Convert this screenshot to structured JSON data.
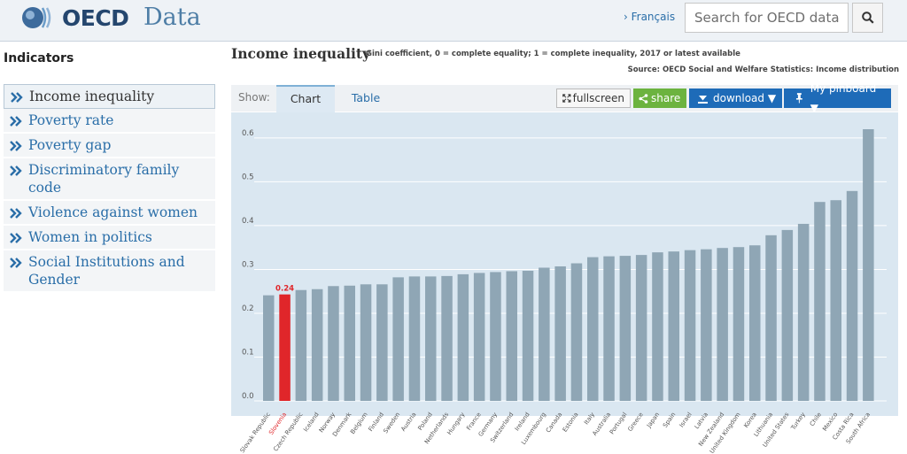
{
  "header": {
    "brand": "OECD",
    "section": "Data",
    "language_link": "› Français",
    "search_placeholder": "Search for OECD data"
  },
  "sidebar": {
    "title": "Indicators",
    "items": [
      {
        "label": "Income inequality",
        "active": true
      },
      {
        "label": "Poverty rate",
        "active": false
      },
      {
        "label": "Poverty gap",
        "active": false
      },
      {
        "label": "Discriminatory family code",
        "active": false
      },
      {
        "label": "Violence against women",
        "active": false
      },
      {
        "label": "Women in politics",
        "active": false
      },
      {
        "label": "Social Institutions and Gender",
        "active": false
      }
    ]
  },
  "main": {
    "title": "Income inequality",
    "subtitle": "Gini coefficient, 0 = complete equality; 1 = complete inequality, 2017 or latest available",
    "source": "Source: OECD Social and Welfare Statistics: Income distribution",
    "show_label": "Show:",
    "tabs": [
      {
        "label": "Chart",
        "active": true
      },
      {
        "label": "Table",
        "active": false
      }
    ],
    "buttons": {
      "fullscreen": "fullscreen",
      "share": "share",
      "download": "download ▼",
      "pinboard": "My pinboard ▼"
    }
  },
  "colors": {
    "bar": "#8fa6b5",
    "highlight": "#e0262a",
    "background": "#dae7f1",
    "share": "#6cb33f",
    "action": "#1e6bb8"
  },
  "chart_data": {
    "type": "bar",
    "title": "Income inequality",
    "categories": [
      "Slovak Republic",
      "Slovenia",
      "Czech Republic",
      "Iceland",
      "Norway",
      "Denmark",
      "Belgium",
      "Finland",
      "Sweden",
      "Austria",
      "Poland",
      "Netherlands",
      "Hungary",
      "France",
      "Germany",
      "Switzerland",
      "Ireland",
      "Luxembourg",
      "Canada",
      "Estonia",
      "Italy",
      "Australia",
      "Portugal",
      "Greece",
      "Japan",
      "Spain",
      "Israel",
      "Latvia",
      "New Zealand",
      "United Kingdom",
      "Korea",
      "Lithuania",
      "United States",
      "Turkey",
      "Chile",
      "Mexico",
      "Costa Rica",
      "South Africa"
    ],
    "values": [
      0.241,
      0.243,
      0.253,
      0.255,
      0.262,
      0.263,
      0.266,
      0.266,
      0.282,
      0.284,
      0.284,
      0.285,
      0.289,
      0.292,
      0.294,
      0.296,
      0.297,
      0.304,
      0.307,
      0.314,
      0.328,
      0.33,
      0.331,
      0.333,
      0.339,
      0.341,
      0.344,
      0.346,
      0.349,
      0.351,
      0.355,
      0.378,
      0.39,
      0.404,
      0.454,
      0.458,
      0.479,
      0.62
    ],
    "highlight": "Slovenia",
    "highlight_label": "0.24",
    "yticks": [
      "0.0",
      "0.1",
      "0.2",
      "0.3",
      "0.4",
      "0.5",
      "0.6"
    ],
    "ylim": [
      0,
      0.62
    ],
    "grid": true
  }
}
